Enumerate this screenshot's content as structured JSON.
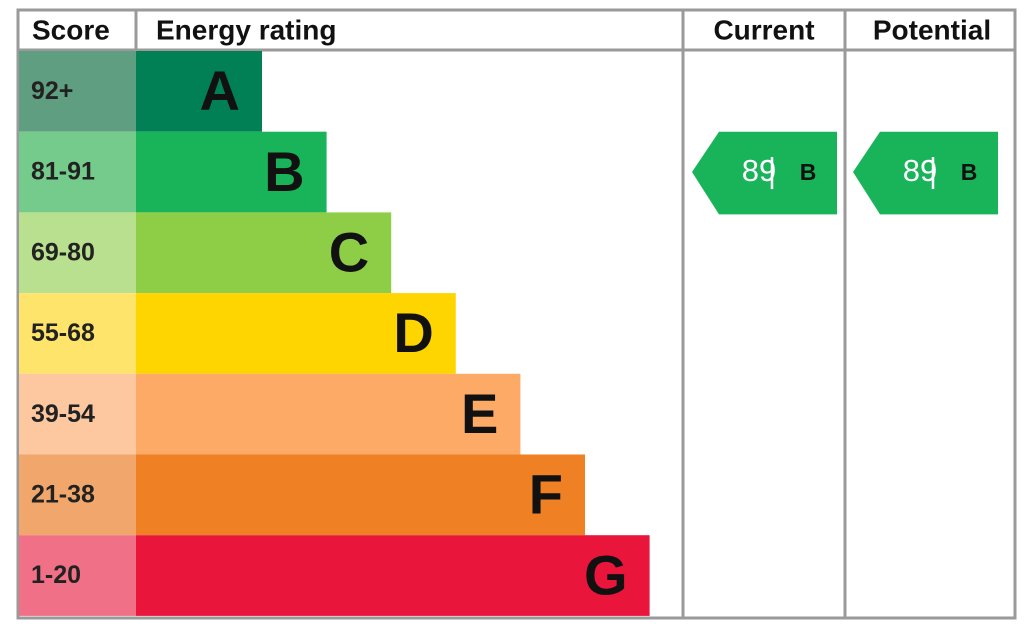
{
  "header": {
    "score": "Score",
    "energy_rating": "Energy rating",
    "current": "Current",
    "potential": "Potential"
  },
  "bands": [
    {
      "score": "92+",
      "letter": "A",
      "color": "#008054",
      "score_color": "#5f9e80"
    },
    {
      "score": "81-91",
      "letter": "B",
      "color": "#19b459",
      "score_color": "#74cb8b"
    },
    {
      "score": "69-80",
      "letter": "C",
      "color": "#8dce46",
      "score_color": "#b8e08e"
    },
    {
      "score": "55-68",
      "letter": "D",
      "color": "#ffd500",
      "score_color": "#ffe46c"
    },
    {
      "score": "39-54",
      "letter": "E",
      "color": "#fcaa65",
      "score_color": "#fdc8a0"
    },
    {
      "score": "21-38",
      "letter": "F",
      "color": "#ef8023",
      "score_color": "#f1a76c"
    },
    {
      "score": "1-20",
      "letter": "G",
      "color": "#e9153b",
      "score_color": "#f07088"
    }
  ],
  "current": {
    "value": 89,
    "letter": "B",
    "color": "#19b459"
  },
  "potential": {
    "value": 89,
    "letter": "B",
    "color": "#19b459"
  }
}
